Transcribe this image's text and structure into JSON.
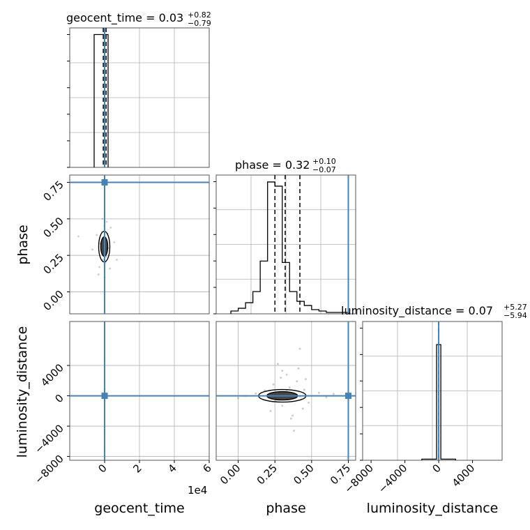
{
  "parameters": [
    "geocent_time",
    "phase",
    "luminosity_distance"
  ],
  "truth_color": "#4682b4",
  "chart_data": [
    {
      "type": "histogram",
      "panel": "geocent_time-1d",
      "title": "geocent_time = 0.03",
      "title_main": "geocent_time = 0.03",
      "title_sup": "+0.82",
      "title_sub": "−0.79",
      "xlim": [
        -2,
        6
      ],
      "bins": [
        -0.6,
        -0.2,
        0.2
      ],
      "counts": [
        1,
        1
      ],
      "ylim": [
        0,
        1.05
      ],
      "quantiles": [
        -0.076,
        0.003,
        0.085
      ],
      "truth": 0.0,
      "grid": true
    },
    {
      "type": "histogram",
      "panel": "phase-1d",
      "title": "phase = 0.32",
      "title_main": "phase = 0.32",
      "title_sup": "+0.10",
      "title_sub": "−0.07",
      "xlim": [
        -0.15,
        0.8
      ],
      "bins": [
        -0.05,
        0.0,
        0.05,
        0.1,
        0.15,
        0.2,
        0.25,
        0.3,
        0.35,
        0.4,
        0.45,
        0.5,
        0.55,
        0.6,
        0.65,
        0.7,
        0.75
      ],
      "counts": [
        0.02,
        0.04,
        0.08,
        0.16,
        0.38,
        0.95,
        0.92,
        0.37,
        0.16,
        0.09,
        0.06,
        0.03,
        0.02,
        0.01,
        0.01,
        0.01
      ],
      "ylim": [
        0,
        1.0
      ],
      "quantiles": [
        0.25,
        0.32,
        0.42
      ],
      "truth": 0.75,
      "grid": true
    },
    {
      "type": "histogram",
      "panel": "luminosity_distance-1d",
      "title": "luminosity_distance = 0.07",
      "title_main": "luminosity_distance = 0.07",
      "title_sup": "+5.27",
      "title_sub": "−5.94",
      "xlim": [
        -9000,
        7500
      ],
      "bins": [
        -2000,
        -1000,
        -250,
        250,
        1000,
        2000
      ],
      "counts": [
        0.01,
        0.01,
        1,
        0.01,
        0.01
      ],
      "ylim": [
        0,
        1.2
      ],
      "quantiles": [
        -5.87,
        0.07,
        5.34
      ],
      "truth": 0.0,
      "grid": true
    },
    {
      "type": "scatter",
      "panel": "phase-vs-geocent_time",
      "xlim": [
        -2,
        6
      ],
      "ylim": [
        -0.15,
        0.8
      ],
      "x_ticks": [
        "0",
        "2",
        "4",
        "6"
      ],
      "y_ticks": [
        "0.00",
        "0.25",
        "0.50",
        "0.75"
      ],
      "ylabel": "phase",
      "truth": {
        "x": 0.0,
        "y": 0.75
      },
      "density_center": {
        "x": -0.02,
        "y": 0.31
      },
      "points": [
        {
          "x": 0.02,
          "y": 0.31
        },
        {
          "x": -0.05,
          "y": 0.28
        },
        {
          "x": 0.06,
          "y": 0.34
        },
        {
          "x": -0.08,
          "y": 0.36
        },
        {
          "x": 0.1,
          "y": 0.24
        },
        {
          "x": -0.1,
          "y": 0.22
        },
        {
          "x": 0.15,
          "y": 0.4
        },
        {
          "x": -0.15,
          "y": 0.41
        },
        {
          "x": 0.05,
          "y": 0.2
        },
        {
          "x": -0.02,
          "y": 0.45
        },
        {
          "x": 0.2,
          "y": 0.3
        },
        {
          "x": -0.25,
          "y": 0.33
        },
        {
          "x": 0.3,
          "y": 0.16
        },
        {
          "x": -0.3,
          "y": 0.17
        },
        {
          "x": 0.12,
          "y": 0.48
        },
        {
          "x": -0.45,
          "y": 0.39
        },
        {
          "x": -0.7,
          "y": 0.29
        },
        {
          "x": 0.55,
          "y": 0.34
        },
        {
          "x": -1.5,
          "y": 0.38
        },
        {
          "x": 0.7,
          "y": 0.22
        },
        {
          "x": 0.35,
          "y": 0.44
        },
        {
          "x": -0.35,
          "y": 0.12
        },
        {
          "x": 0.0,
          "y": 0.1
        },
        {
          "x": -0.12,
          "y": 0.5
        }
      ]
    },
    {
      "type": "scatter",
      "panel": "luminosity_distance-vs-geocent_time",
      "xlim": [
        -2,
        6
      ],
      "ylim": [
        -8500,
        9800
      ],
      "y_ticks": [
        "−8000",
        "−4000",
        "0",
        "4000"
      ],
      "x_ticks": [
        "0",
        "2",
        "4",
        "6"
      ],
      "x_offset_label": "1e4",
      "xlabel": "geocent_time",
      "ylabel": "luminosity_distance",
      "truth": {
        "x": 0.0,
        "y": 0.0
      },
      "points": [
        {
          "x": -0.05,
          "y": 0
        },
        {
          "x": 0.05,
          "y": 50
        },
        {
          "x": -0.1,
          "y": -40
        },
        {
          "x": 0.08,
          "y": 30
        },
        {
          "x": 0.0,
          "y": 400
        },
        {
          "x": 0.02,
          "y": -300
        },
        {
          "x": 0.0,
          "y": 900
        },
        {
          "x": 0.01,
          "y": -700
        }
      ]
    },
    {
      "type": "scatter",
      "panel": "luminosity_distance-vs-phase",
      "xlim": [
        -0.15,
        0.8
      ],
      "ylim": [
        -8500,
        9800
      ],
      "x_ticks": [
        "0.00",
        "0.25",
        "0.50",
        "0.75"
      ],
      "xlabel": "phase",
      "truth": {
        "x": 0.75,
        "y": 0.0
      },
      "density_center": {
        "x": 0.3,
        "y": 0
      },
      "points": [
        {
          "x": 0.31,
          "y": 100
        },
        {
          "x": 0.25,
          "y": -150
        },
        {
          "x": 0.38,
          "y": 200
        },
        {
          "x": 0.2,
          "y": 50
        },
        {
          "x": 0.42,
          "y": -80
        },
        {
          "x": 0.33,
          "y": 600
        },
        {
          "x": 0.28,
          "y": -500
        },
        {
          "x": 0.35,
          "y": 1100
        },
        {
          "x": 0.3,
          "y": -1300
        },
        {
          "x": 0.4,
          "y": 1900
        },
        {
          "x": 0.22,
          "y": -2000
        },
        {
          "x": 0.45,
          "y": 800
        },
        {
          "x": 0.18,
          "y": 700
        },
        {
          "x": 0.48,
          "y": -900
        },
        {
          "x": 0.12,
          "y": 300
        },
        {
          "x": 0.55,
          "y": 400
        },
        {
          "x": 0.33,
          "y": 2800
        },
        {
          "x": 0.36,
          "y": -3000
        },
        {
          "x": 0.41,
          "y": 3600
        },
        {
          "x": 0.27,
          "y": 4200
        },
        {
          "x": 0.38,
          "y": -4600
        },
        {
          "x": 0.42,
          "y": 6200
        },
        {
          "x": 0.3,
          "y": 3300
        },
        {
          "x": 0.46,
          "y": 2200
        },
        {
          "x": 0.05,
          "y": 0
        },
        {
          "x": 0.6,
          "y": -200
        },
        {
          "x": 0.65,
          "y": 250
        },
        {
          "x": 0.0,
          "y": -300
        },
        {
          "x": 0.24,
          "y": 1500
        },
        {
          "x": 0.44,
          "y": -1700
        },
        {
          "x": 0.37,
          "y": -2600
        },
        {
          "x": 0.29,
          "y": 2400
        }
      ]
    },
    {
      "type": "axis",
      "panel": "luminosity_distance-x-axis",
      "x_ticks": [
        "−8000",
        "−4000",
        "0",
        "4000"
      ],
      "xlabel": "luminosity_distance"
    }
  ]
}
